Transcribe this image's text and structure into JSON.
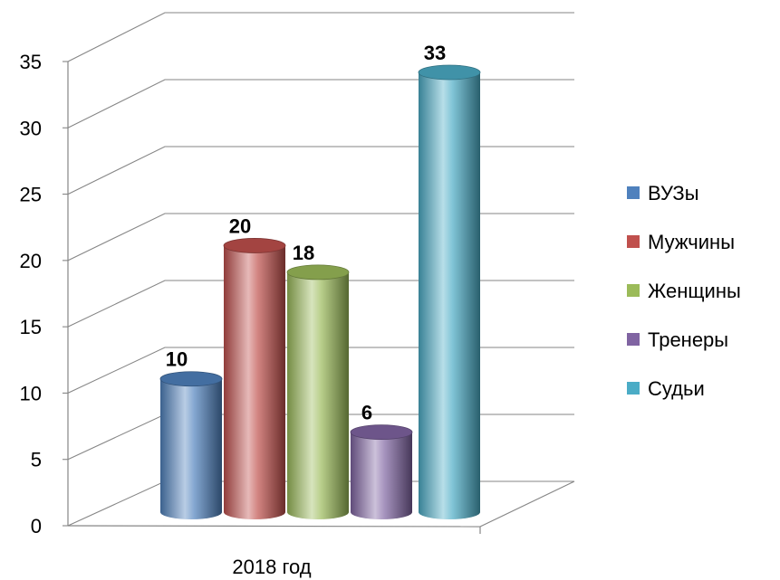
{
  "chart_data": {
    "type": "bar",
    "style": "3d-cylinder",
    "categories": [
      "2018 год"
    ],
    "series": [
      {
        "name": "ВУЗы",
        "values": [
          10
        ],
        "color": "#4f81bd"
      },
      {
        "name": "Мужчины",
        "values": [
          20
        ],
        "color": "#c0504d"
      },
      {
        "name": "Женщины",
        "values": [
          18
        ],
        "color": "#9bbb59"
      },
      {
        "name": "Тренеры",
        "values": [
          6
        ],
        "color": "#8064a2"
      },
      {
        "name": "Судьи",
        "values": [
          33
        ],
        "color": "#4bacc6"
      }
    ],
    "data_labels": [
      "10",
      "20",
      "18",
      "6",
      "33"
    ],
    "y_ticks": [
      "0",
      "5",
      "10",
      "15",
      "20",
      "25",
      "30",
      "35"
    ],
    "ylim": [
      0,
      35
    ],
    "grid": true,
    "legend_position": "right"
  }
}
